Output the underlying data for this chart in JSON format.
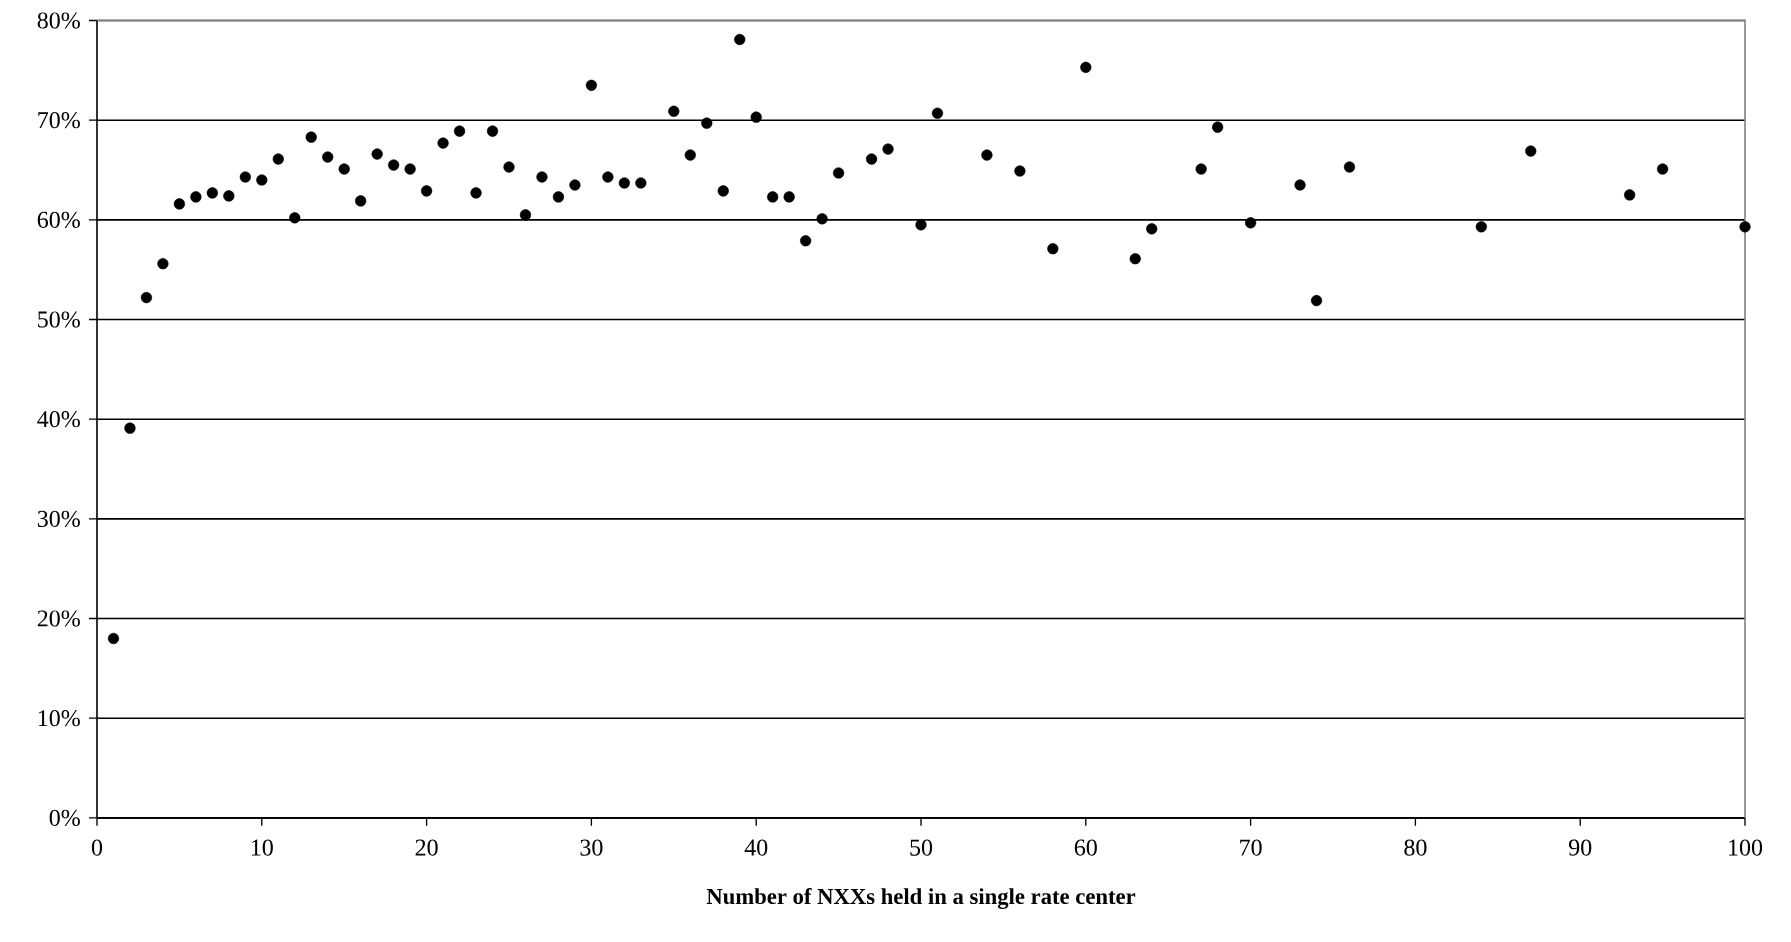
{
  "chart_data": {
    "type": "scatter",
    "xlabel": "Number of NXXs held in a single rate center",
    "x": [
      1,
      2,
      3,
      4,
      5,
      6,
      7,
      8,
      9,
      10,
      11,
      12,
      13,
      14,
      15,
      16,
      17,
      18,
      19,
      20,
      21,
      22,
      23,
      24,
      25,
      26,
      27,
      28,
      29,
      30,
      31,
      32,
      33,
      35,
      36,
      37,
      38,
      39,
      40,
      41,
      42,
      43,
      44,
      45,
      47,
      48,
      50,
      51,
      54,
      56,
      58,
      60,
      63,
      64,
      67,
      68,
      70,
      73,
      74,
      76,
      84,
      87,
      93,
      95,
      100
    ],
    "values": [
      18.0,
      39.1,
      52.2,
      55.6,
      61.6,
      62.3,
      62.7,
      62.4,
      64.3,
      64.0,
      66.1,
      60.2,
      68.3,
      66.3,
      65.1,
      61.9,
      66.6,
      65.5,
      65.1,
      62.9,
      67.7,
      68.9,
      62.7,
      68.9,
      65.3,
      60.5,
      64.3,
      62.3,
      63.5,
      73.5,
      64.3,
      63.7,
      63.7,
      70.9,
      66.5,
      69.7,
      62.9,
      78.1,
      70.3,
      62.3,
      62.3,
      57.9,
      60.1,
      64.7,
      66.1,
      67.1,
      59.5,
      70.7,
      66.5,
      64.9,
      57.1,
      75.3,
      56.1,
      59.1,
      65.1,
      69.3,
      59.7,
      63.5,
      51.9,
      65.3,
      59.3,
      66.9,
      62.5,
      65.1,
      59.3
    ],
    "color": "#000000",
    "marker": "circle",
    "grid": "y",
    "xlim": [
      0,
      100
    ],
    "ylim": [
      0,
      80
    ],
    "xticks": [
      0,
      10,
      20,
      30,
      40,
      50,
      60,
      70,
      80,
      90,
      100
    ],
    "yticks": [
      {
        "value": 0,
        "label": "0%"
      },
      {
        "value": 10,
        "label": "10%"
      },
      {
        "value": 20,
        "label": "20%"
      },
      {
        "value": 30,
        "label": "30%"
      },
      {
        "value": 40,
        "label": "40%"
      },
      {
        "value": 50,
        "label": "50%"
      },
      {
        "value": 60,
        "label": "60%"
      },
      {
        "value": 70,
        "label": "70%"
      },
      {
        "value": 80,
        "label": "80%"
      }
    ]
  }
}
